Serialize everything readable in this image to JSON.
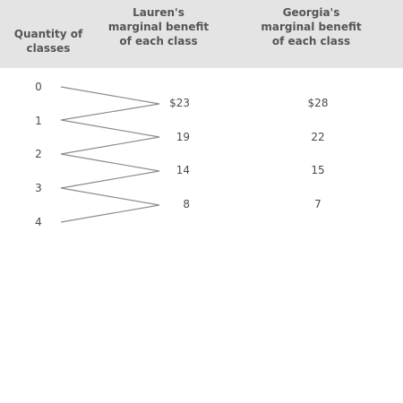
{
  "table": {
    "headers": {
      "quantity": [
        "Quantity of",
        "classes"
      ],
      "lauren": [
        "Lauren's",
        "marginal benefit",
        "of each class"
      ],
      "georgia": [
        "Georgia's",
        "marginal benefit",
        "of each class"
      ]
    },
    "quantities": [
      "0",
      "1",
      "2",
      "3",
      "4"
    ],
    "lauren_values": [
      "$23",
      "19",
      "14",
      "8"
    ],
    "georgia_values": [
      "$28",
      "22",
      "15",
      "7"
    ]
  }
}
